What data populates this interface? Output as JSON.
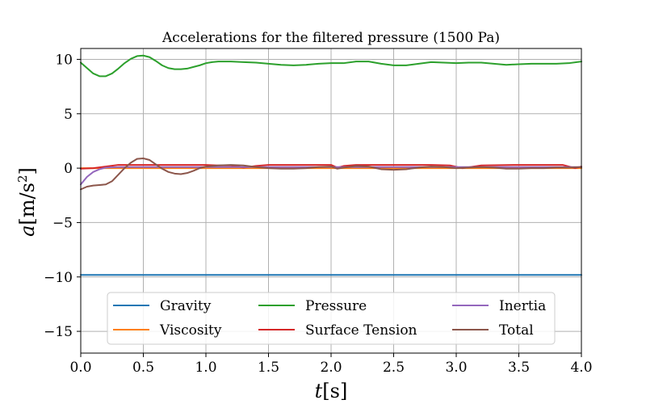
{
  "chart_data": {
    "type": "line",
    "title": "Accelerations for the filtered pressure (1500 Pa)",
    "xlabel_var": "t",
    "xlabel_unit": "[s]",
    "ylabel_var": "a",
    "ylabel_unit": "[m/s",
    "ylabel_exp": "2",
    "ylabel_close": "]",
    "xlim": [
      0,
      4
    ],
    "ylim": [
      -17,
      11
    ],
    "xticks": [
      0,
      0.5,
      1,
      1.5,
      2,
      2.5,
      3,
      3.5,
      4
    ],
    "xtick_labels": [
      "0.0",
      "0.5",
      "1.0",
      "1.5",
      "2.0",
      "2.5",
      "3.0",
      "3.5",
      "4.0"
    ],
    "yticks": [
      10,
      5,
      0,
      -5,
      -10,
      -15
    ],
    "ytick_labels": [
      "10",
      "5",
      "0",
      "−5",
      "−10",
      "−15"
    ],
    "grid": true,
    "legend_position": "lower-center",
    "series": [
      {
        "name": "Gravity",
        "color": "#1f77b4",
        "points": [
          [
            0,
            -9.81
          ],
          [
            4,
            -9.81
          ]
        ]
      },
      {
        "name": "Viscosity",
        "color": "#ff7f0e",
        "points": [
          [
            0,
            0.0
          ],
          [
            0.5,
            0.0
          ],
          [
            1,
            0.0
          ],
          [
            1.5,
            0.0
          ],
          [
            2,
            0.0
          ],
          [
            2.5,
            0.0
          ],
          [
            3,
            0.0
          ],
          [
            3.5,
            0.0
          ],
          [
            4,
            0.0
          ]
        ]
      },
      {
        "name": "Pressure",
        "color": "#2ca02c",
        "points": [
          [
            0,
            9.7
          ],
          [
            0.05,
            9.2
          ],
          [
            0.1,
            8.7
          ],
          [
            0.15,
            8.45
          ],
          [
            0.2,
            8.45
          ],
          [
            0.25,
            8.7
          ],
          [
            0.3,
            9.15
          ],
          [
            0.35,
            9.65
          ],
          [
            0.4,
            10.05
          ],
          [
            0.45,
            10.3
          ],
          [
            0.5,
            10.35
          ],
          [
            0.55,
            10.2
          ],
          [
            0.6,
            9.85
          ],
          [
            0.65,
            9.45
          ],
          [
            0.7,
            9.2
          ],
          [
            0.75,
            9.1
          ],
          [
            0.8,
            9.1
          ],
          [
            0.85,
            9.15
          ],
          [
            0.9,
            9.3
          ],
          [
            0.95,
            9.45
          ],
          [
            1.0,
            9.65
          ],
          [
            1.05,
            9.75
          ],
          [
            1.1,
            9.8
          ],
          [
            1.2,
            9.8
          ],
          [
            1.3,
            9.75
          ],
          [
            1.4,
            9.7
          ],
          [
            1.5,
            9.6
          ],
          [
            1.6,
            9.5
          ],
          [
            1.7,
            9.45
          ],
          [
            1.8,
            9.5
          ],
          [
            1.9,
            9.6
          ],
          [
            2.0,
            9.65
          ],
          [
            2.1,
            9.65
          ],
          [
            2.2,
            9.8
          ],
          [
            2.3,
            9.8
          ],
          [
            2.4,
            9.6
          ],
          [
            2.5,
            9.45
          ],
          [
            2.6,
            9.45
          ],
          [
            2.7,
            9.6
          ],
          [
            2.8,
            9.75
          ],
          [
            2.9,
            9.7
          ],
          [
            3.0,
            9.65
          ],
          [
            3.1,
            9.7
          ],
          [
            3.2,
            9.7
          ],
          [
            3.3,
            9.6
          ],
          [
            3.4,
            9.5
          ],
          [
            3.5,
            9.55
          ],
          [
            3.6,
            9.6
          ],
          [
            3.7,
            9.6
          ],
          [
            3.8,
            9.6
          ],
          [
            3.9,
            9.65
          ],
          [
            4.0,
            9.8
          ]
        ]
      },
      {
        "name": "Surface Tension",
        "color": "#d62728",
        "points": [
          [
            0,
            -0.05
          ],
          [
            0.1,
            0.0
          ],
          [
            0.2,
            0.15
          ],
          [
            0.3,
            0.3
          ],
          [
            0.5,
            0.3
          ],
          [
            0.8,
            0.3
          ],
          [
            1.0,
            0.3
          ],
          [
            1.1,
            0.25
          ],
          [
            1.2,
            0.25
          ],
          [
            1.3,
            0.05
          ],
          [
            1.4,
            0.2
          ],
          [
            1.5,
            0.3
          ],
          [
            2.0,
            0.3
          ],
          [
            2.05,
            0.05
          ],
          [
            2.1,
            0.2
          ],
          [
            2.2,
            0.3
          ],
          [
            2.5,
            0.3
          ],
          [
            2.8,
            0.3
          ],
          [
            2.95,
            0.25
          ],
          [
            3.05,
            0.0
          ],
          [
            3.2,
            0.25
          ],
          [
            3.5,
            0.3
          ],
          [
            3.7,
            0.3
          ],
          [
            3.85,
            0.3
          ],
          [
            3.95,
            0.0
          ],
          [
            4.0,
            0.15
          ]
        ]
      },
      {
        "name": "Inertia",
        "color": "#9467bd",
        "points": [
          [
            0,
            -1.5
          ],
          [
            0.05,
            -0.8
          ],
          [
            0.1,
            -0.35
          ],
          [
            0.15,
            -0.1
          ],
          [
            0.2,
            0.05
          ],
          [
            0.3,
            0.1
          ],
          [
            0.5,
            0.1
          ],
          [
            1.0,
            0.1
          ],
          [
            1.5,
            0.1
          ],
          [
            2.0,
            0.1
          ],
          [
            2.5,
            0.1
          ],
          [
            3.0,
            0.1
          ],
          [
            3.5,
            0.1
          ],
          [
            4.0,
            0.1
          ]
        ]
      },
      {
        "name": "Total",
        "color": "#8c564b",
        "points": [
          [
            0,
            -1.95
          ],
          [
            0.05,
            -1.7
          ],
          [
            0.1,
            -1.6
          ],
          [
            0.15,
            -1.55
          ],
          [
            0.2,
            -1.5
          ],
          [
            0.25,
            -1.2
          ],
          [
            0.3,
            -0.6
          ],
          [
            0.35,
            0.0
          ],
          [
            0.4,
            0.5
          ],
          [
            0.45,
            0.85
          ],
          [
            0.5,
            0.9
          ],
          [
            0.55,
            0.75
          ],
          [
            0.6,
            0.35
          ],
          [
            0.65,
            -0.05
          ],
          [
            0.7,
            -0.35
          ],
          [
            0.75,
            -0.5
          ],
          [
            0.8,
            -0.55
          ],
          [
            0.85,
            -0.45
          ],
          [
            0.9,
            -0.25
          ],
          [
            0.95,
            0.0
          ],
          [
            1.0,
            0.15
          ],
          [
            1.1,
            0.25
          ],
          [
            1.2,
            0.3
          ],
          [
            1.3,
            0.25
          ],
          [
            1.4,
            0.1
          ],
          [
            1.5,
            0.0
          ],
          [
            1.6,
            -0.05
          ],
          [
            1.7,
            -0.05
          ],
          [
            1.8,
            0.0
          ],
          [
            1.9,
            0.1
          ],
          [
            2.0,
            0.15
          ],
          [
            2.05,
            -0.05
          ],
          [
            2.1,
            0.05
          ],
          [
            2.2,
            0.2
          ],
          [
            2.3,
            0.15
          ],
          [
            2.4,
            -0.1
          ],
          [
            2.5,
            -0.15
          ],
          [
            2.6,
            -0.1
          ],
          [
            2.7,
            0.05
          ],
          [
            2.8,
            0.15
          ],
          [
            2.9,
            0.1
          ],
          [
            3.0,
            0.0
          ],
          [
            3.1,
            0.05
          ],
          [
            3.2,
            0.1
          ],
          [
            3.3,
            0.05
          ],
          [
            3.4,
            -0.05
          ],
          [
            3.5,
            -0.05
          ],
          [
            3.6,
            0.0
          ],
          [
            3.7,
            0.0
          ],
          [
            3.8,
            0.05
          ],
          [
            3.9,
            0.05
          ],
          [
            4.0,
            0.1
          ]
        ]
      }
    ]
  }
}
